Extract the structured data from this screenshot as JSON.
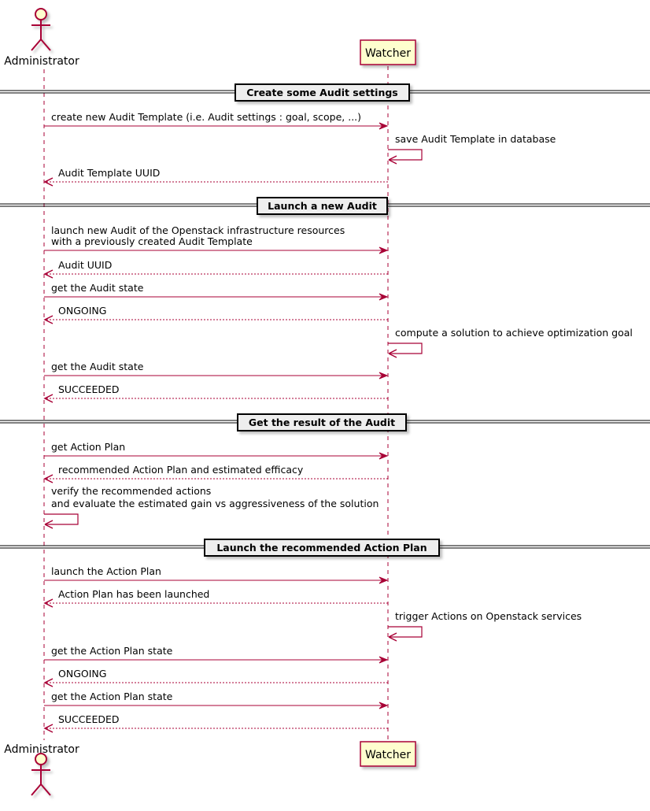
{
  "colors": {
    "arrow": "#A80036",
    "participant_fill": "#FEFECE",
    "divider_fill": "#EEEEEE"
  },
  "participants": {
    "actor": {
      "name": "Administrator",
      "icon": "stick-figure-actor"
    },
    "system": {
      "name": "Watcher"
    }
  },
  "sequence": [
    {
      "kind": "divider",
      "label": "Create some Audit settings"
    },
    {
      "kind": "call",
      "from": "actor",
      "to": "system",
      "lines": [
        "create new Audit Template (i.e. Audit settings : goal, scope, ...)"
      ]
    },
    {
      "kind": "self",
      "on": "system",
      "lines": [
        "save Audit Template in database"
      ]
    },
    {
      "kind": "return",
      "from": "system",
      "to": "actor",
      "lines": [
        "Audit Template UUID"
      ]
    },
    {
      "kind": "divider",
      "label": "Launch a new Audit"
    },
    {
      "kind": "call",
      "from": "actor",
      "to": "system",
      "lines": [
        "launch new Audit of the Openstack infrastructure resources",
        "with a previously created Audit Template"
      ]
    },
    {
      "kind": "return",
      "from": "system",
      "to": "actor",
      "lines": [
        "Audit UUID"
      ]
    },
    {
      "kind": "call",
      "from": "actor",
      "to": "system",
      "lines": [
        "get the Audit state"
      ]
    },
    {
      "kind": "return",
      "from": "system",
      "to": "actor",
      "lines": [
        "ONGOING"
      ]
    },
    {
      "kind": "self",
      "on": "system",
      "lines": [
        "compute a solution to achieve optimization goal"
      ]
    },
    {
      "kind": "call",
      "from": "actor",
      "to": "system",
      "lines": [
        "get the Audit state"
      ]
    },
    {
      "kind": "return",
      "from": "system",
      "to": "actor",
      "lines": [
        "SUCCEEDED"
      ]
    },
    {
      "kind": "divider",
      "label": "Get the result of the Audit"
    },
    {
      "kind": "call",
      "from": "actor",
      "to": "system",
      "lines": [
        "get Action Plan"
      ]
    },
    {
      "kind": "return",
      "from": "system",
      "to": "actor",
      "lines": [
        "recommended Action Plan and estimated efficacy"
      ]
    },
    {
      "kind": "self",
      "on": "actor",
      "lines": [
        "verify the recommended actions",
        "and evaluate the estimated gain vs aggressiveness of the solution"
      ]
    },
    {
      "kind": "divider",
      "label": "Launch the recommended Action Plan"
    },
    {
      "kind": "call",
      "from": "actor",
      "to": "system",
      "lines": [
        "launch the Action Plan"
      ]
    },
    {
      "kind": "return",
      "from": "system",
      "to": "actor",
      "lines": [
        "Action Plan has been launched"
      ]
    },
    {
      "kind": "self",
      "on": "system",
      "lines": [
        "trigger Actions on Openstack services"
      ]
    },
    {
      "kind": "call",
      "from": "actor",
      "to": "system",
      "lines": [
        "get the Action Plan state"
      ]
    },
    {
      "kind": "return",
      "from": "system",
      "to": "actor",
      "lines": [
        "ONGOING"
      ]
    },
    {
      "kind": "call",
      "from": "actor",
      "to": "system",
      "lines": [
        "get the Action Plan state"
      ]
    },
    {
      "kind": "return",
      "from": "system",
      "to": "actor",
      "lines": [
        "SUCCEEDED"
      ]
    }
  ]
}
